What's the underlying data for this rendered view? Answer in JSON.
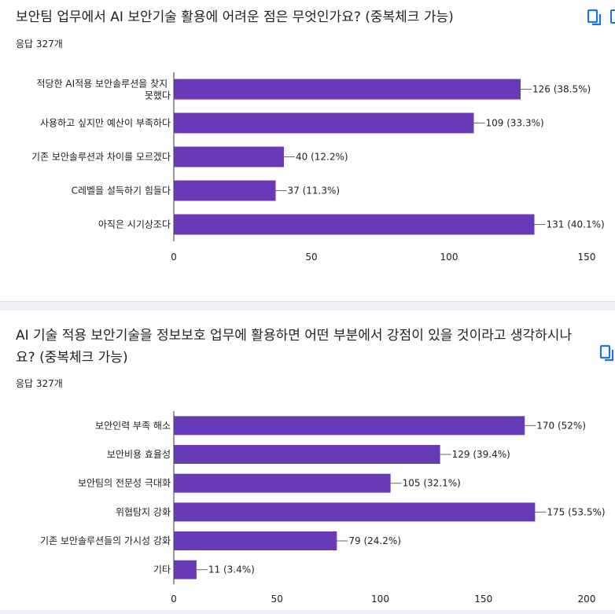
{
  "colors": {
    "bar": "#673ab7",
    "accent_icon": "#1a73e8",
    "text": "#202124",
    "axis": "#333333",
    "divider": "#eeeef6"
  },
  "icons": {
    "copy": "copy-chart-icon"
  },
  "questions": [
    {
      "title": "보안팀 업무에서 AI 보안기술 활용에 어려운 점은 무엇인가요? (중복체크 가능)",
      "responses": "응답 327개"
    },
    {
      "title": "AI 기술 적용 보안기술을 정보보호 업무에 활용하면 어떤 부분에서 강점이 있을 것이라고 생각하시나요?  (중복체크 가능)",
      "responses": "응답 327개"
    }
  ],
  "chart_data": [
    {
      "type": "bar",
      "orientation": "horizontal",
      "title": "보안팀 업무에서 AI 보안기술 활용에 어려운 점은 무엇인가요? (중복체크 가능)",
      "categories": [
        "적당한 AI적용 보안솔루션을 찾지 못했다",
        "사용하고 싶지만 예산이 부족하다",
        "기존 보안솔루션과 차이를 모르겠다",
        "C레벨을 설득하기 힘들다",
        "아직은 시기상조다"
      ],
      "values": [
        126,
        109,
        40,
        37,
        131
      ],
      "data_labels": [
        "126 (38.5%)",
        "109 (33.3%)",
        "40 (12.2%)",
        "37 (11.3%)",
        "131 (40.1%)"
      ],
      "xlim": [
        0,
        150
      ],
      "ticks": [
        0,
        50,
        100,
        150
      ],
      "grid": false
    },
    {
      "type": "bar",
      "orientation": "horizontal",
      "title": "AI 기술 적용 보안기술을 정보보호 업무에 활용하면 어떤 부분에서 강점이 있을 것이라고 생각하시나요?  (중복체크 가능)",
      "categories": [
        "보안인력 부족 해소",
        "보안비용 효율성",
        "보안팀의 전문성 극대화",
        "위협탐지 강화",
        "기존 보안솔루션들의 가시성 강화",
        "기타"
      ],
      "values": [
        170,
        129,
        105,
        175,
        79,
        11
      ],
      "data_labels": [
        "170 (52%)",
        "129 (39.4%)",
        "105 (32.1%)",
        "175 (53.5%)",
        "79 (24.2%)",
        "11 (3.4%)"
      ],
      "xlim": [
        0,
        200
      ],
      "ticks": [
        0,
        50,
        100,
        150,
        200
      ],
      "grid": false
    }
  ]
}
